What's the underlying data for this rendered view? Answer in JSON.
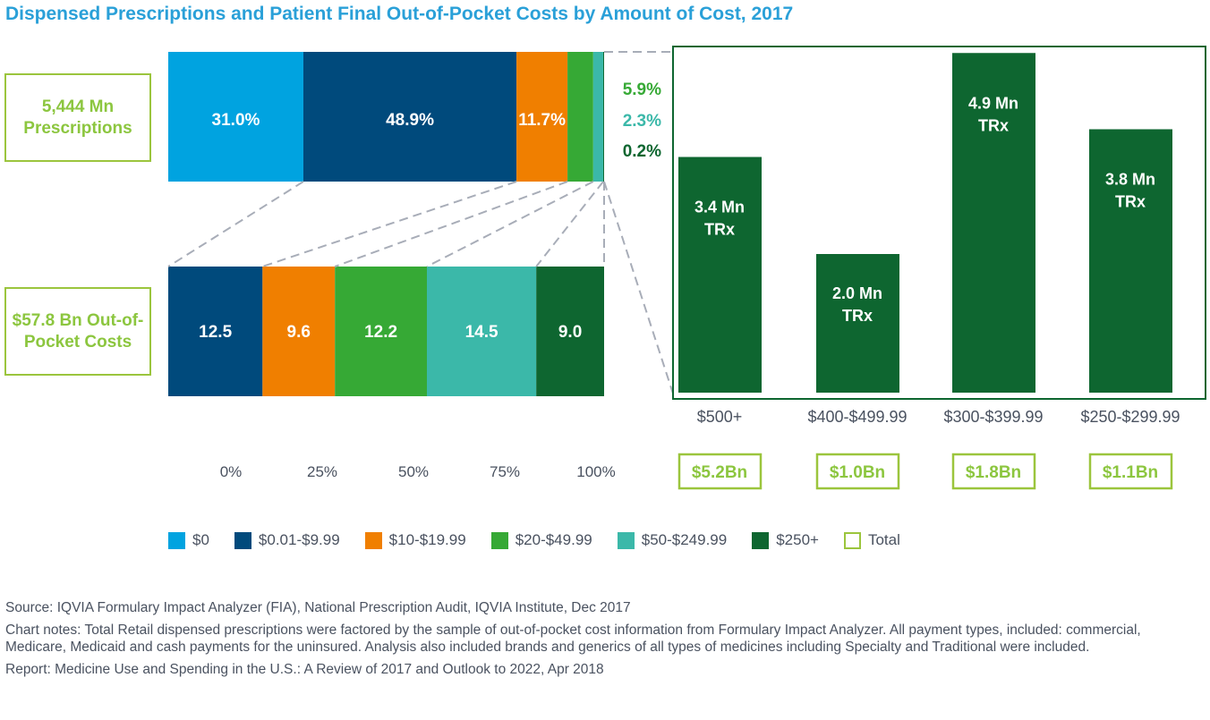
{
  "title": "Dispensed Prescriptions and Patient Final Out-of-Pocket Costs by Amount of Cost, 2017",
  "chart_data": [
    {
      "type": "bar",
      "orientation": "horizontal-stacked",
      "total_label": "5,444 Mn Prescriptions",
      "categories": [
        "$0",
        "$0.01-$9.99",
        "$10-$19.99",
        "$20-$49.99",
        "$50-$249.99",
        "$250+"
      ],
      "values": [
        31.0,
        48.9,
        11.7,
        5.9,
        2.3,
        0.2
      ],
      "labels": [
        "31.0%",
        "48.9%",
        "11.7%",
        "5.9%",
        "2.3%",
        "0.2%"
      ]
    },
    {
      "type": "bar",
      "orientation": "horizontal-stacked",
      "total_label": "$57.8 Bn Out-of-Pocket Costs",
      "categories": [
        "$0.01-$9.99",
        "$10-$19.99",
        "$20-$49.99",
        "$50-$249.99",
        "$250+"
      ],
      "values": [
        12.5,
        9.6,
        12.2,
        14.5,
        9.0
      ],
      "labels": [
        "12.5",
        "9.6",
        "12.2",
        "14.5",
        "9.0"
      ],
      "xticks": [
        "0%",
        "25%",
        "50%",
        "75%",
        "100%"
      ]
    },
    {
      "type": "bar",
      "categories": [
        "$500+",
        "$400-$499.99",
        "$300-$399.99",
        "$250-$299.99"
      ],
      "values": [
        3.4,
        2.0,
        4.9,
        3.8
      ],
      "labels": [
        "3.4 Mn TRx",
        "2.0 Mn TRx",
        "4.9 Mn TRx",
        "3.8 Mn TRx"
      ],
      "totals": [
        "$5.2Bn",
        "$1.0Bn",
        "$1.8Bn",
        "$1.1Bn"
      ]
    }
  ],
  "totals": {
    "prescriptions": "5,444 Mn Prescriptions",
    "costs": "$57.8 Bn Out-of-Pocket Costs"
  },
  "legend": [
    {
      "label": "$0",
      "color": "#00a3e0"
    },
    {
      "label": "$0.01-$9.99",
      "color": "#004a7c"
    },
    {
      "label": "$10-$19.99",
      "color": "#f07f00"
    },
    {
      "label": "$20-$49.99",
      "color": "#36a935"
    },
    {
      "label": "$50-$249.99",
      "color": "#3bb8a9"
    },
    {
      "label": "$250+",
      "color": "#0e6630"
    },
    {
      "label": "Total",
      "color": "#9bc53d",
      "outline": true
    }
  ],
  "notes": {
    "source": "Source: IQVIA Formulary Impact Analyzer (FIA), National Prescription Audit, IQVIA Institute, Dec 2017",
    "chart_notes": "Chart notes: Total Retail dispensed prescriptions were factored by the sample of out-of-pocket cost information from Formulary Impact Analyzer. All payment types, included: commercial, Medicare, Medicaid and cash payments for the uninsured. Analysis also included brands and generics of all types of medicines including Specialty and Traditional were included.",
    "report": "Report: Medicine Use and Spending in the U.S.: A Review of 2017 and Outlook to 2022, Apr 2018"
  }
}
